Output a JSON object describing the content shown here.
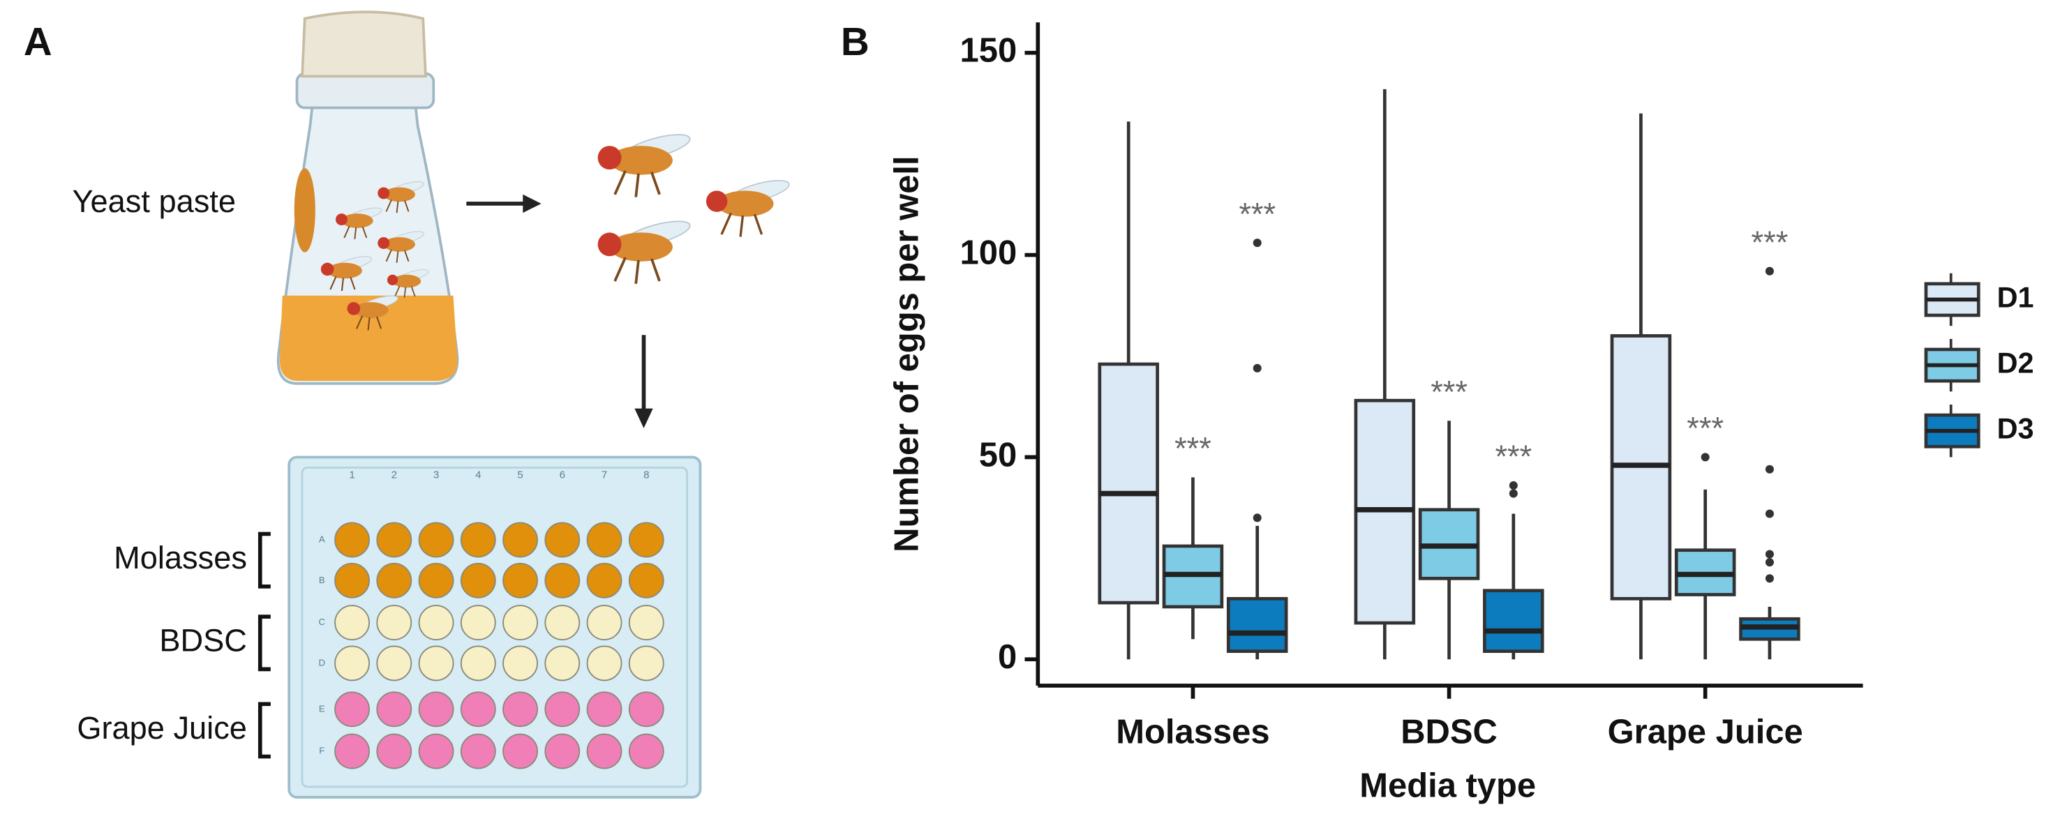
{
  "panel_labels": [
    "A",
    "B"
  ],
  "illustration": {
    "yeast_label": "Yeast paste",
    "plate": {
      "columns": [
        "1",
        "2",
        "3",
        "4",
        "5",
        "6",
        "7",
        "8"
      ],
      "rows": [
        "A",
        "B",
        "C",
        "D",
        "E",
        "F"
      ],
      "media": [
        {
          "name": "Molasses",
          "color": "#e0900a"
        },
        {
          "name": "BDSC",
          "color": "#f7efc6"
        },
        {
          "name": "Grape Juice",
          "color": "#f07fb8"
        }
      ]
    }
  },
  "chart_data": {
    "type": "box",
    "ylabel": "Number of eggs per well",
    "xlabel": "Media type",
    "categories": [
      "Molasses",
      "BDSC",
      "Grape Juice"
    ],
    "ylim": [
      -6.5,
      157.5
    ],
    "yticks": [
      0,
      50,
      100,
      150
    ],
    "legend": "right",
    "series": [
      {
        "name": "D1",
        "color": "#dbe9f6",
        "min": [
          0,
          0,
          0
        ],
        "q1": [
          14,
          9,
          15
        ],
        "median": [
          41,
          37,
          48
        ],
        "q3": [
          73,
          64,
          80
        ],
        "max": [
          133,
          141,
          135
        ],
        "outliers": [
          [],
          [],
          []
        ]
      },
      {
        "name": "D2",
        "color": "#7ecbe6",
        "min": [
          5,
          0,
          0
        ],
        "q1": [
          13,
          20,
          16
        ],
        "median": [
          21,
          28,
          21
        ],
        "q3": [
          28,
          37,
          27
        ],
        "max": [
          45,
          59,
          42
        ],
        "outliers": [
          [],
          [],
          [
            50
          ]
        ],
        "annotations": [
          "***",
          "***",
          "***"
        ]
      },
      {
        "name": "D3",
        "color": "#0d7cbf",
        "min": [
          0,
          0,
          0
        ],
        "q1": [
          2,
          2,
          5
        ],
        "median": [
          6.5,
          7,
          8
        ],
        "q3": [
          15,
          17,
          10
        ],
        "max": [
          33,
          36,
          13
        ],
        "outliers": [
          [
            35,
            72,
            103
          ],
          [
            41,
            43
          ],
          [
            20,
            24,
            26,
            36,
            47,
            96
          ]
        ],
        "annotations": [
          "***",
          "***",
          "***"
        ]
      }
    ]
  }
}
